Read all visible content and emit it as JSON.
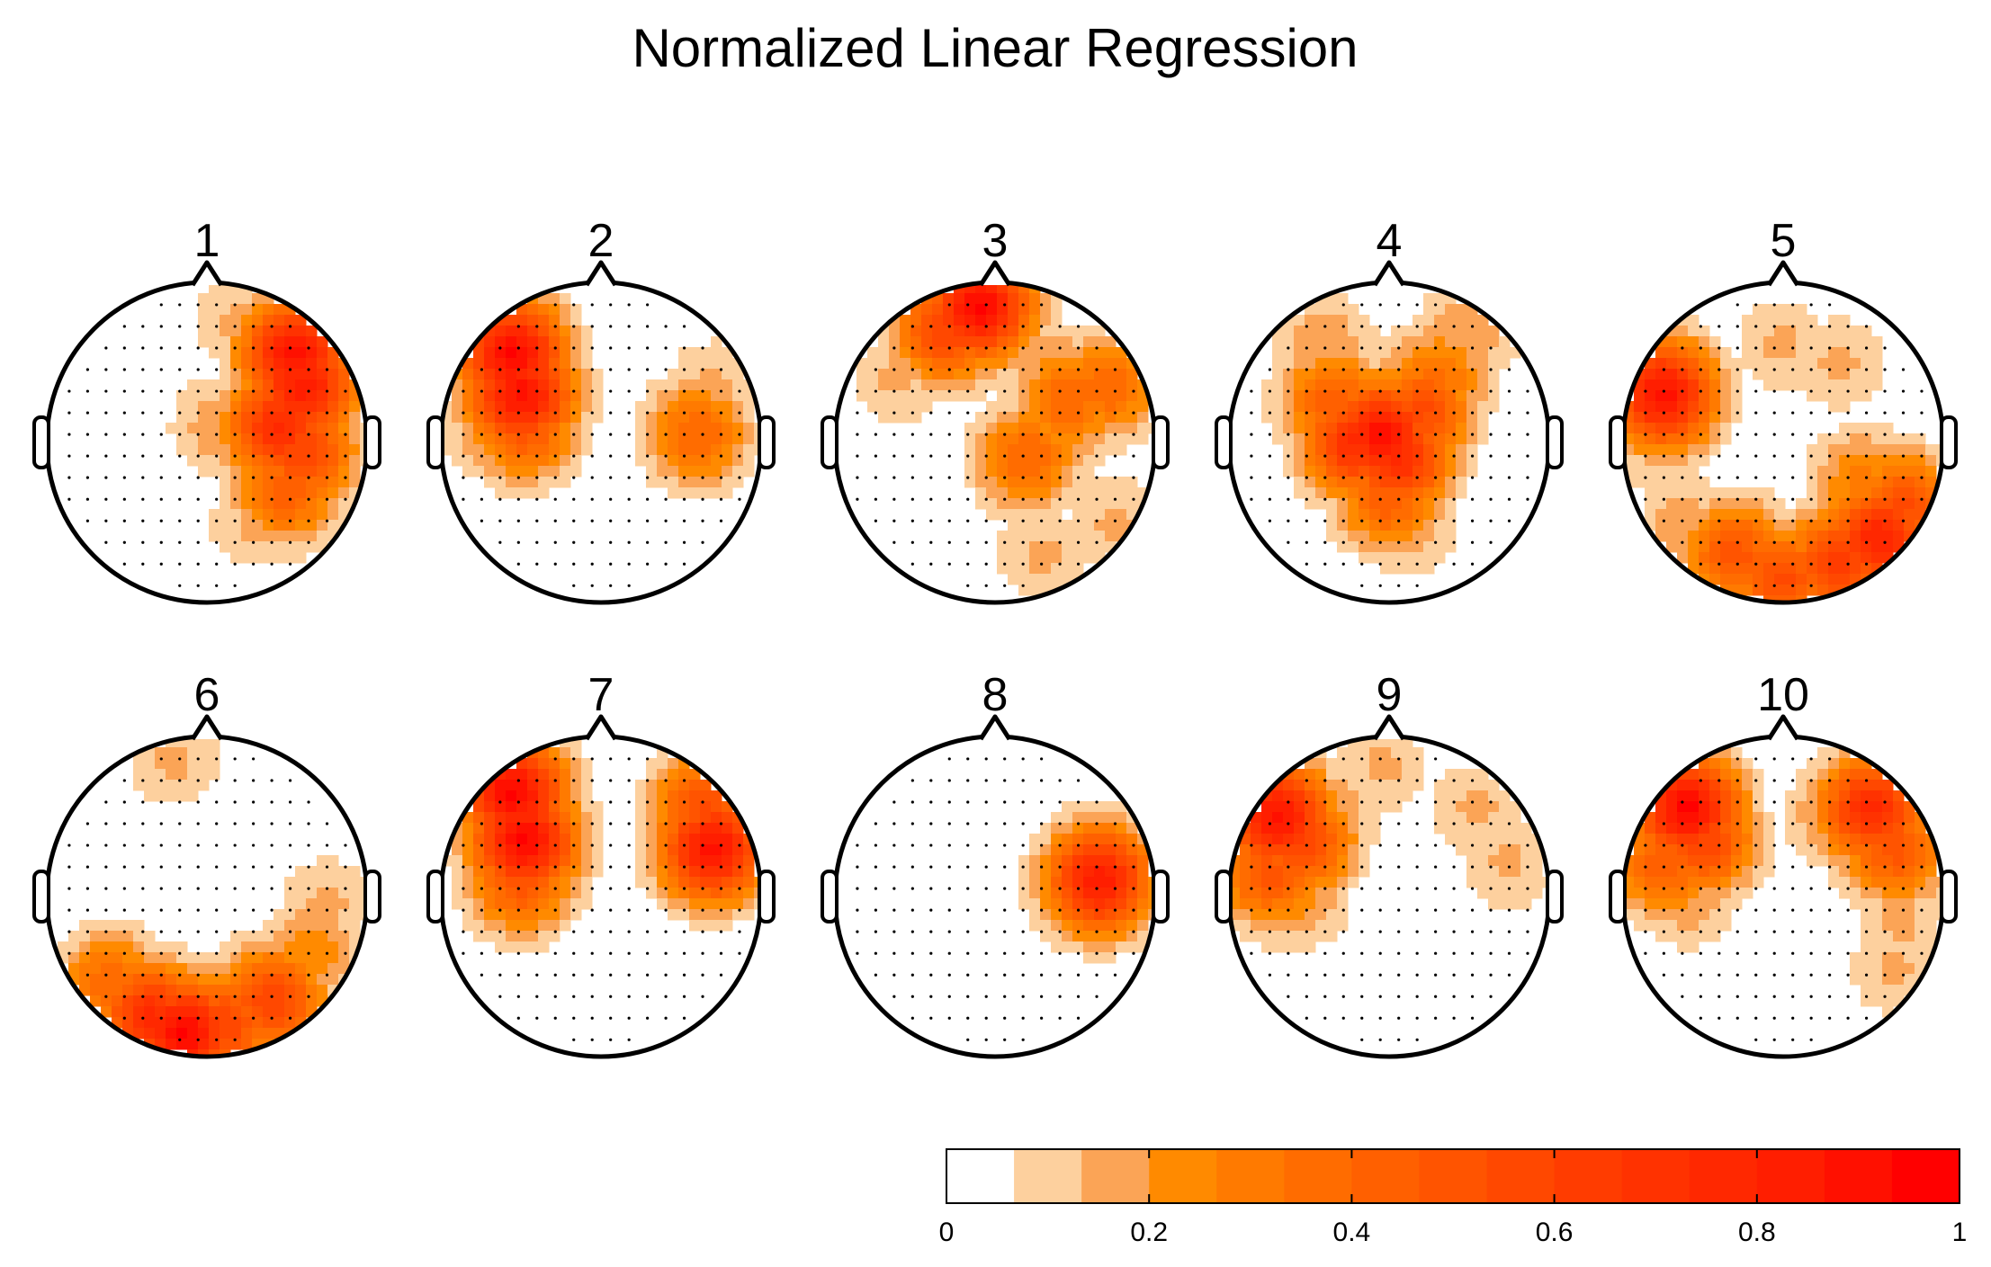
{
  "chart_data": {
    "type": "heatmap",
    "title": "Normalized Linear Regression",
    "colorbar": {
      "min": 0,
      "max": 1,
      "ticks": [
        0,
        0.2,
        0.4,
        0.6,
        0.8,
        1
      ],
      "tick_labels": [
        "0",
        "0.2",
        "0.4",
        "0.6",
        "0.8",
        "1"
      ],
      "levels": 15,
      "colors": [
        "#ffffff",
        "#fdd09e",
        "#fba456",
        "#ff8a00",
        "#ff7a00",
        "#ff6c00",
        "#ff6000",
        "#ff5400",
        "#ff4800",
        "#ff3c00",
        "#ff3200",
        "#ff2800",
        "#ff1e00",
        "#ff1000",
        "#ff0000"
      ]
    },
    "grid_note": "Head-outline topographic maps; each blob is [x, y, value] with x=left→right, y=front(-1)→back(+1), value in colorbar units",
    "panels": [
      {
        "label": "1",
        "blobs": [
          [
            0.55,
            -0.55,
            0.9
          ],
          [
            0.6,
            -0.35,
            0.85
          ],
          [
            0.45,
            -0.1,
            0.75
          ],
          [
            0.6,
            0.05,
            0.6
          ],
          [
            0.5,
            0.3,
            0.45
          ],
          [
            0.3,
            0.5,
            0.15
          ],
          [
            0.2,
            -0.75,
            0.15
          ],
          [
            0.1,
            -0.1,
            0.2
          ]
        ]
      },
      {
        "label": "2",
        "blobs": [
          [
            -0.55,
            -0.55,
            0.95
          ],
          [
            -0.5,
            -0.3,
            0.9
          ],
          [
            -0.48,
            -0.1,
            0.5
          ],
          [
            -0.7,
            -0.1,
            0.2
          ],
          [
            -0.5,
            0.1,
            0.15
          ],
          [
            0.5,
            -0.15,
            0.15
          ],
          [
            0.6,
            -0.05,
            0.4
          ],
          [
            0.7,
            -0.35,
            0.15
          ]
        ]
      },
      {
        "label": "3",
        "blobs": [
          [
            -0.1,
            -0.85,
            0.95
          ],
          [
            -0.3,
            -0.7,
            0.6
          ],
          [
            0.05,
            -0.75,
            0.2
          ],
          [
            -0.6,
            -0.4,
            0.15
          ],
          [
            0.4,
            -0.4,
            0.25
          ],
          [
            0.7,
            -0.35,
            0.4
          ],
          [
            0.45,
            -0.25,
            0.4
          ],
          [
            0.2,
            0.1,
            0.4
          ],
          [
            0.3,
            0.7,
            0.15
          ],
          [
            0.75,
            0.5,
            0.15
          ]
        ]
      },
      {
        "label": "4",
        "blobs": [
          [
            -0.05,
            -0.05,
            0.9
          ],
          [
            0.05,
            0.1,
            0.75
          ],
          [
            -0.2,
            0.0,
            0.75
          ],
          [
            0.2,
            -0.2,
            0.55
          ],
          [
            -0.35,
            -0.25,
            0.45
          ],
          [
            0.3,
            -0.4,
            0.35
          ],
          [
            -0.4,
            -0.6,
            0.2
          ],
          [
            0.5,
            -0.7,
            0.2
          ],
          [
            0.0,
            0.35,
            0.45
          ],
          [
            0.1,
            0.5,
            0.2
          ]
        ]
      },
      {
        "label": "5",
        "blobs": [
          [
            -0.75,
            -0.3,
            0.9
          ],
          [
            -0.8,
            0.05,
            0.15
          ],
          [
            0.0,
            -0.6,
            0.15
          ],
          [
            0.35,
            -0.5,
            0.15
          ],
          [
            -0.3,
            0.7,
            0.5
          ],
          [
            0.0,
            0.85,
            0.55
          ],
          [
            0.35,
            0.75,
            0.65
          ],
          [
            0.6,
            0.6,
            0.8
          ],
          [
            0.75,
            0.4,
            0.55
          ],
          [
            -0.6,
            0.55,
            0.2
          ],
          [
            0.5,
            0.25,
            0.3
          ]
        ]
      },
      {
        "label": "6",
        "blobs": [
          [
            -0.15,
            0.85,
            0.95
          ],
          [
            -0.35,
            0.75,
            0.75
          ],
          [
            0.1,
            0.8,
            0.6
          ],
          [
            0.4,
            0.65,
            0.6
          ],
          [
            -0.6,
            0.55,
            0.4
          ],
          [
            0.65,
            0.35,
            0.25
          ],
          [
            0.75,
            0.05,
            0.15
          ],
          [
            -0.2,
            -0.85,
            0.15
          ]
        ]
      },
      {
        "label": "7",
        "blobs": [
          [
            -0.55,
            -0.65,
            0.95
          ],
          [
            -0.48,
            -0.35,
            0.95
          ],
          [
            -0.5,
            -0.1,
            0.5
          ],
          [
            0.65,
            -0.55,
            0.55
          ],
          [
            0.7,
            -0.3,
            0.9
          ],
          [
            0.7,
            -0.15,
            0.15
          ]
        ]
      },
      {
        "label": "8",
        "blobs": [
          [
            0.65,
            -0.1,
            0.85
          ],
          [
            0.6,
            -0.3,
            0.2
          ],
          [
            0.65,
            -0.15,
            0.4
          ]
        ]
      },
      {
        "label": "9",
        "blobs": [
          [
            -0.7,
            -0.5,
            0.9
          ],
          [
            -0.55,
            -0.35,
            0.6
          ],
          [
            -0.75,
            -0.15,
            0.5
          ],
          [
            -0.6,
            0.0,
            0.25
          ],
          [
            -0.3,
            -0.6,
            0.15
          ],
          [
            -0.05,
            -0.8,
            0.15
          ],
          [
            0.55,
            -0.55,
            0.15
          ],
          [
            0.75,
            -0.2,
            0.15
          ]
        ]
      },
      {
        "label": "10",
        "blobs": [
          [
            -0.6,
            -0.55,
            0.95
          ],
          [
            -0.5,
            -0.35,
            0.6
          ],
          [
            -0.75,
            -0.2,
            0.45
          ],
          [
            -0.6,
            0.0,
            0.2
          ],
          [
            0.55,
            -0.55,
            0.75
          ],
          [
            0.7,
            -0.3,
            0.5
          ],
          [
            0.35,
            -0.5,
            0.25
          ],
          [
            0.6,
            -0.75,
            0.2
          ],
          [
            0.75,
            0.15,
            0.15
          ],
          [
            0.7,
            0.45,
            0.15
          ]
        ]
      }
    ]
  }
}
